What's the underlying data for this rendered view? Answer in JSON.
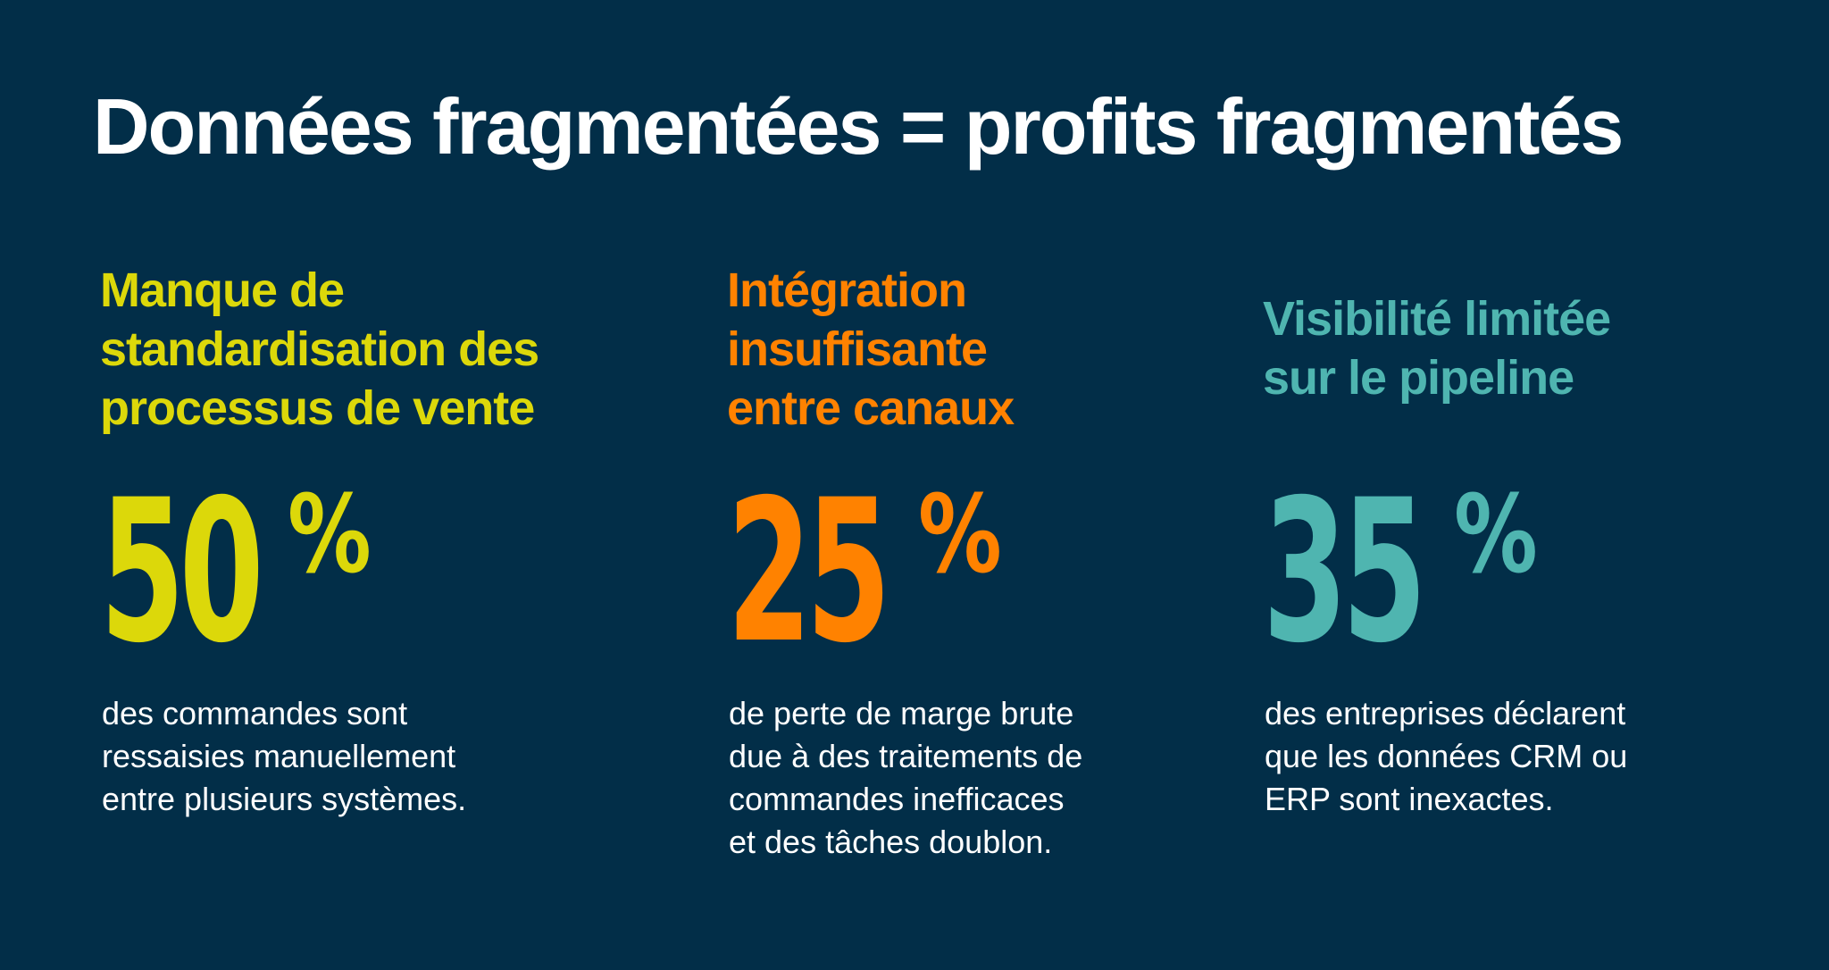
{
  "title": "Données fragmentées = profits fragmentés",
  "colors": {
    "background": "#022e48",
    "yellow": "#dcd80a",
    "orange": "#ff8200",
    "teal": "#4fb5b0",
    "text": "#ffffff"
  },
  "columns": [
    {
      "heading": "Manque de\nstandardisation des\nprocessus de vente",
      "stat_number": "50",
      "stat_unit": "%",
      "description": "des commandes sont\nressaisies manuellement\nentre plusieurs systèmes."
    },
    {
      "heading": "Intégration\ninsuffisante\nentre canaux",
      "stat_number": "25",
      "stat_unit": "%",
      "description": "de perte de marge brute\ndue à des traitements de\ncommandes inefficaces\net des tâches doublon."
    },
    {
      "heading": "Visibilité limitée\nsur le pipeline",
      "stat_number": "35",
      "stat_unit": "%",
      "description": "des entreprises déclarent\nque les données CRM ou\nERP sont inexactes."
    }
  ]
}
